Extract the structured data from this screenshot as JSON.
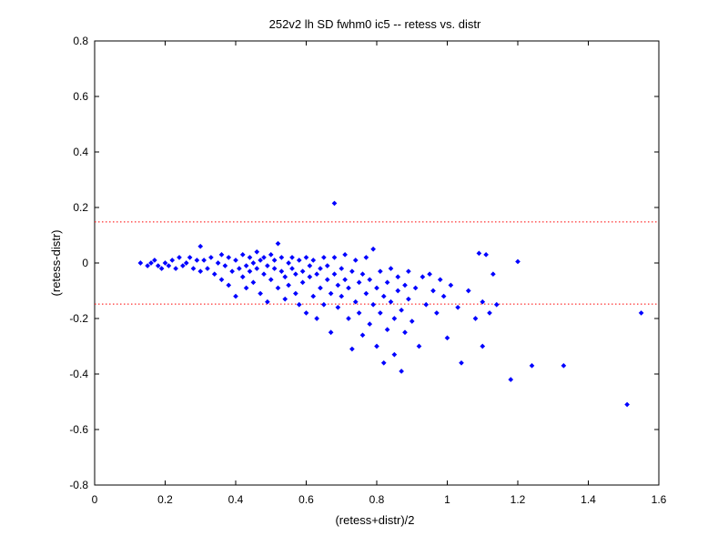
{
  "chart_data": {
    "type": "scatter",
    "title": "252v2 lh SD fwhm0 ic5 -- retess vs. distr",
    "xlabel": "(retess+distr)/2",
    "ylabel": "(retess-distr)",
    "xlim": [
      0,
      1.6
    ],
    "ylim": [
      -0.8,
      0.8
    ],
    "xticks": [
      0,
      0.2,
      0.4,
      0.6,
      0.8,
      1,
      1.2,
      1.4,
      1.6
    ],
    "yticks": [
      -0.8,
      -0.6,
      -0.4,
      -0.2,
      0,
      0.2,
      0.4,
      0.6,
      0.8
    ],
    "xtick_labels": [
      "0",
      "0.2",
      "0.4",
      "0.6",
      "0.8",
      "1",
      "1.2",
      "1.4",
      "1.6"
    ],
    "ytick_labels": [
      "-0.8",
      "-0.6",
      "-0.4",
      "-0.2",
      "0",
      "0.2",
      "0.4",
      "0.6",
      "0.8"
    ],
    "grid": false,
    "colors": {
      "points": "#0000ff",
      "reference_lines": "#ff0000",
      "axes": "#000000"
    },
    "reference_lines": [
      {
        "y": 0.148
      },
      {
        "y": -0.148
      }
    ],
    "series": [
      {
        "marker": "point",
        "points": [
          [
            0.13,
            0.0
          ],
          [
            0.15,
            -0.01
          ],
          [
            0.16,
            0.0
          ],
          [
            0.17,
            0.01
          ],
          [
            0.18,
            -0.01
          ],
          [
            0.19,
            -0.02
          ],
          [
            0.2,
            0.0
          ],
          [
            0.21,
            -0.01
          ],
          [
            0.22,
            0.01
          ],
          [
            0.23,
            -0.02
          ],
          [
            0.24,
            0.02
          ],
          [
            0.25,
            -0.01
          ],
          [
            0.26,
            0.0
          ],
          [
            0.27,
            0.02
          ],
          [
            0.28,
            -0.02
          ],
          [
            0.29,
            0.01
          ],
          [
            0.3,
            -0.03
          ],
          [
            0.3,
            0.06
          ],
          [
            0.31,
            0.01
          ],
          [
            0.32,
            -0.02
          ],
          [
            0.33,
            0.02
          ],
          [
            0.34,
            -0.04
          ],
          [
            0.35,
            0.0
          ],
          [
            0.36,
            0.03
          ],
          [
            0.36,
            -0.06
          ],
          [
            0.37,
            -0.01
          ],
          [
            0.38,
            0.02
          ],
          [
            0.38,
            -0.08
          ],
          [
            0.39,
            -0.03
          ],
          [
            0.4,
            0.01
          ],
          [
            0.4,
            -0.12
          ],
          [
            0.41,
            -0.02
          ],
          [
            0.42,
            0.03
          ],
          [
            0.42,
            -0.05
          ],
          [
            0.43,
            -0.01
          ],
          [
            0.43,
            -0.09
          ],
          [
            0.44,
            0.02
          ],
          [
            0.44,
            -0.03
          ],
          [
            0.45,
            0.0
          ],
          [
            0.45,
            -0.07
          ],
          [
            0.46,
            0.04
          ],
          [
            0.46,
            -0.02
          ],
          [
            0.47,
            -0.11
          ],
          [
            0.47,
            0.01
          ],
          [
            0.48,
            -0.04
          ],
          [
            0.48,
            0.02
          ],
          [
            0.49,
            -0.01
          ],
          [
            0.49,
            -0.14
          ],
          [
            0.5,
            0.03
          ],
          [
            0.5,
            -0.06
          ],
          [
            0.51,
            -0.02
          ],
          [
            0.51,
            0.01
          ],
          [
            0.52,
            -0.09
          ],
          [
            0.52,
            0.07
          ],
          [
            0.53,
            -0.03
          ],
          [
            0.53,
            0.02
          ],
          [
            0.54,
            -0.05
          ],
          [
            0.54,
            -0.13
          ],
          [
            0.55,
            0.0
          ],
          [
            0.55,
            -0.08
          ],
          [
            0.56,
            0.02
          ],
          [
            0.56,
            -0.02
          ],
          [
            0.57,
            -0.11
          ],
          [
            0.57,
            -0.04
          ],
          [
            0.58,
            0.01
          ],
          [
            0.58,
            -0.15
          ],
          [
            0.59,
            -0.03
          ],
          [
            0.59,
            -0.07
          ],
          [
            0.6,
            0.02
          ],
          [
            0.6,
            -0.18
          ],
          [
            0.61,
            -0.01
          ],
          [
            0.61,
            -0.05
          ],
          [
            0.62,
            -0.12
          ],
          [
            0.62,
            0.01
          ],
          [
            0.63,
            -0.04
          ],
          [
            0.63,
            -0.2
          ],
          [
            0.64,
            -0.02
          ],
          [
            0.64,
            -0.09
          ],
          [
            0.65,
            0.02
          ],
          [
            0.65,
            -0.15
          ],
          [
            0.66,
            -0.06
          ],
          [
            0.66,
            -0.01
          ],
          [
            0.67,
            -0.11
          ],
          [
            0.67,
            -0.25
          ],
          [
            0.68,
            0.02
          ],
          [
            0.68,
            -0.04
          ],
          [
            0.68,
            0.215
          ],
          [
            0.69,
            -0.08
          ],
          [
            0.69,
            -0.16
          ],
          [
            0.7,
            -0.02
          ],
          [
            0.7,
            -0.12
          ],
          [
            0.71,
            0.03
          ],
          [
            0.71,
            -0.06
          ],
          [
            0.72,
            -0.2
          ],
          [
            0.72,
            -0.09
          ],
          [
            0.73,
            -0.03
          ],
          [
            0.73,
            -0.31
          ],
          [
            0.74,
            -0.14
          ],
          [
            0.74,
            0.01
          ],
          [
            0.75,
            -0.07
          ],
          [
            0.75,
            -0.18
          ],
          [
            0.76,
            -0.04
          ],
          [
            0.76,
            -0.26
          ],
          [
            0.77,
            -0.11
          ],
          [
            0.77,
            0.02
          ],
          [
            0.78,
            -0.06
          ],
          [
            0.78,
            -0.22
          ],
          [
            0.79,
            -0.15
          ],
          [
            0.79,
            0.05
          ],
          [
            0.8,
            -0.09
          ],
          [
            0.8,
            -0.3
          ],
          [
            0.81,
            -0.03
          ],
          [
            0.81,
            -0.18
          ],
          [
            0.82,
            -0.12
          ],
          [
            0.82,
            -0.36
          ],
          [
            0.83,
            -0.07
          ],
          [
            0.83,
            -0.24
          ],
          [
            0.84,
            -0.02
          ],
          [
            0.84,
            -0.14
          ],
          [
            0.85,
            -0.2
          ],
          [
            0.85,
            -0.33
          ],
          [
            0.86,
            -0.1
          ],
          [
            0.86,
            -0.05
          ],
          [
            0.87,
            -0.39
          ],
          [
            0.87,
            -0.17
          ],
          [
            0.88,
            -0.25
          ],
          [
            0.88,
            -0.08
          ],
          [
            0.89,
            -0.13
          ],
          [
            0.89,
            -0.03
          ],
          [
            0.9,
            -0.21
          ],
          [
            0.91,
            -0.09
          ],
          [
            0.92,
            -0.3
          ],
          [
            0.93,
            -0.05
          ],
          [
            0.94,
            -0.15
          ],
          [
            0.95,
            -0.04
          ],
          [
            0.96,
            -0.1
          ],
          [
            0.97,
            -0.18
          ],
          [
            0.98,
            -0.06
          ],
          [
            0.99,
            -0.12
          ],
          [
            1.0,
            -0.27
          ],
          [
            1.01,
            -0.08
          ],
          [
            1.03,
            -0.16
          ],
          [
            1.04,
            -0.36
          ],
          [
            1.06,
            -0.1
          ],
          [
            1.08,
            -0.2
          ],
          [
            1.09,
            0.035
          ],
          [
            1.1,
            -0.3
          ],
          [
            1.1,
            -0.14
          ],
          [
            1.11,
            0.03
          ],
          [
            1.12,
            -0.18
          ],
          [
            1.13,
            -0.04
          ],
          [
            1.14,
            -0.15
          ],
          [
            1.18,
            -0.42
          ],
          [
            1.2,
            0.005
          ],
          [
            1.24,
            -0.37
          ],
          [
            1.33,
            -0.37
          ],
          [
            1.51,
            -0.51
          ],
          [
            1.55,
            -0.18
          ]
        ]
      }
    ]
  }
}
